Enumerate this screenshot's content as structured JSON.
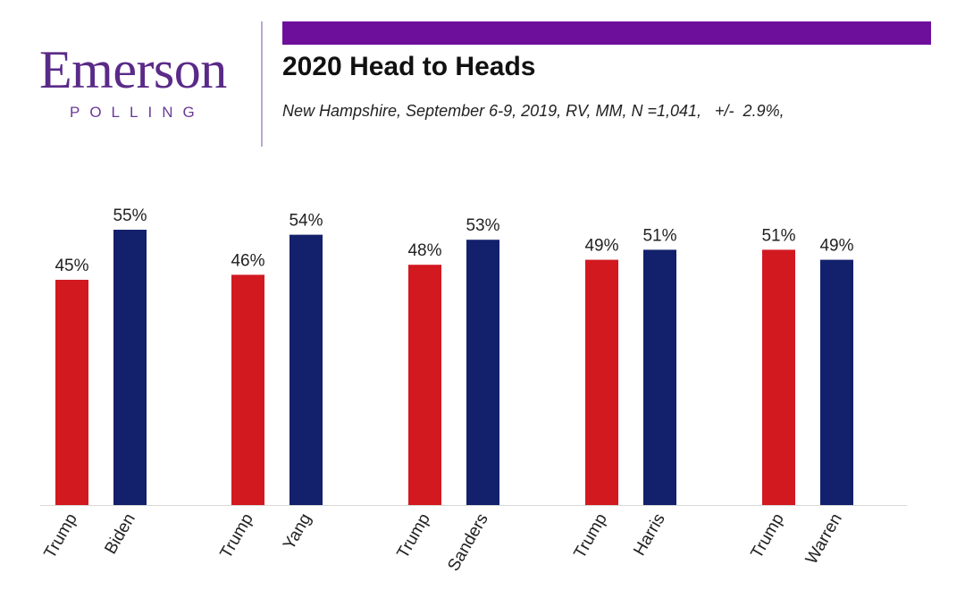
{
  "branding": {
    "logo_word": "Emerson",
    "logo_sub": "POLLING"
  },
  "colors": {
    "accent_bar": "#6d0f9b",
    "logo": "#5a2a88",
    "trump": "#d21920",
    "democrat": "#13206b"
  },
  "chart_data": {
    "type": "bar",
    "title": "2020 Head to Heads",
    "subtitle": "New Hampshire, September 6-9, 2019, RV, MM, N =1,041,   +/-  2.9%,",
    "xlabel": "",
    "ylabel": "",
    "ylim": [
      0,
      60
    ],
    "grid": false,
    "legend": "none",
    "value_suffix": "%",
    "groups": [
      {
        "bars": [
          {
            "label": "Trump",
            "value": 45,
            "party": "trump"
          },
          {
            "label": "Biden",
            "value": 55,
            "party": "democrat"
          }
        ]
      },
      {
        "bars": [
          {
            "label": "Trump",
            "value": 46,
            "party": "trump"
          },
          {
            "label": "Yang",
            "value": 54,
            "party": "democrat"
          }
        ]
      },
      {
        "bars": [
          {
            "label": "Trump",
            "value": 48,
            "party": "trump"
          },
          {
            "label": "Sanders",
            "value": 53,
            "party": "democrat"
          }
        ]
      },
      {
        "bars": [
          {
            "label": "Trump",
            "value": 49,
            "party": "trump"
          },
          {
            "label": "Harris",
            "value": 51,
            "party": "democrat"
          }
        ]
      },
      {
        "bars": [
          {
            "label": "Trump",
            "value": 51,
            "party": "trump"
          },
          {
            "label": "Warren",
            "value": 49,
            "party": "democrat"
          }
        ]
      }
    ]
  }
}
